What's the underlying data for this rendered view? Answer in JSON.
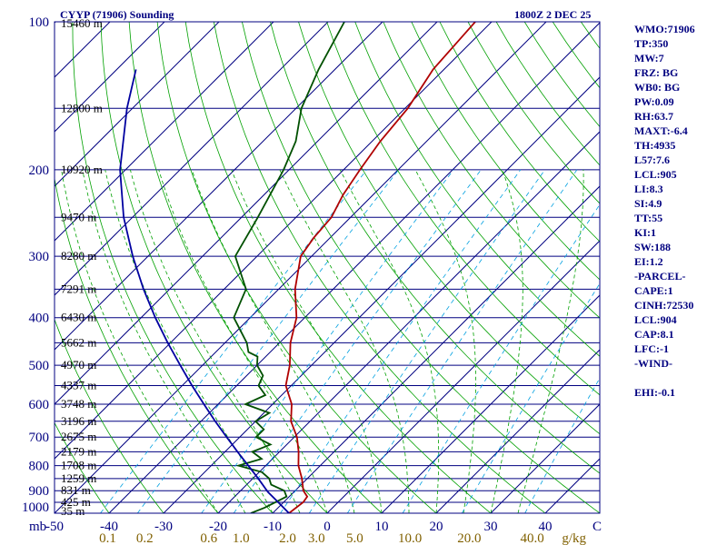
{
  "header": {
    "station_title": "CYYP (71906) Sounding",
    "time": "1800Z  2 DEC 25"
  },
  "stats": [
    "WMO:71906",
    "TP:350",
    "MW:7",
    "FRZ: BG",
    "WB0: BG",
    "PW:0.09",
    "RH:63.7",
    "MAXT:-6.4",
    "TH:4935",
    "L57:7.6",
    "LCL:905",
    "LI:8.3",
    "SI:4.9",
    "TT:55",
    "KI:1",
    "SW:188",
    "EI:1.2",
    "-PARCEL-",
    "CAPE:1",
    "CINH:72530",
    "LCL:904",
    "CAP:8.1",
    "LFC:-1",
    "-WIND-",
    "",
    "EHI:-0.1"
  ],
  "colors": {
    "frame": "#000080",
    "isobar": "#000080",
    "isotherm": "#000080",
    "dry_adiabat": "#00a000",
    "moist_adiabat": "#00a000",
    "mixing_ratio": "#00a0e0",
    "temperature": "#b00000",
    "dewpoint": "#005000",
    "parcel": "#0000a0",
    "axis_label": "#000080",
    "mixing_label": "#806000",
    "height_label": "#000000"
  },
  "chart_data": {
    "type": "line",
    "title": "CYYP (71906) Sounding",
    "xlabel": "C",
    "ylabel": "mb",
    "x_ticks": [
      -50,
      -40,
      -30,
      -20,
      -10,
      0,
      10,
      20,
      30,
      40
    ],
    "x_unit_label": "C",
    "pressure_range": [
      100,
      1000
    ],
    "temperature_range": [
      -50,
      50
    ],
    "pressure_tick_labels": [
      {
        "p": 100,
        "label": "100"
      },
      {
        "p": 200,
        "label": "200"
      },
      {
        "p": 300,
        "label": "300"
      },
      {
        "p": 400,
        "label": "400"
      },
      {
        "p": 500,
        "label": "500"
      },
      {
        "p": 600,
        "label": "600"
      },
      {
        "p": 700,
        "label": "700"
      },
      {
        "p": 800,
        "label": "800"
      },
      {
        "p": 900,
        "label": "900"
      },
      {
        "p": 1000,
        "label": "1000"
      }
    ],
    "isobars": [
      100,
      150,
      200,
      250,
      300,
      350,
      400,
      450,
      500,
      550,
      600,
      650,
      700,
      750,
      800,
      850,
      900,
      950,
      1000
    ],
    "heights": [
      {
        "p": 100,
        "label": "15460 m"
      },
      {
        "p": 150,
        "label": "12800 m"
      },
      {
        "p": 200,
        "label": "10920 m"
      },
      {
        "p": 250,
        "label": "9470 m"
      },
      {
        "p": 300,
        "label": "8280 m"
      },
      {
        "p": 350,
        "label": "7291 m"
      },
      {
        "p": 400,
        "label": "6430 m"
      },
      {
        "p": 450,
        "label": "5662 m"
      },
      {
        "p": 500,
        "label": "4970 m"
      },
      {
        "p": 550,
        "label": "4337 m"
      },
      {
        "p": 600,
        "label": "3748 m"
      },
      {
        "p": 650,
        "label": "3196 m"
      },
      {
        "p": 700,
        "label": "2675 m"
      },
      {
        "p": 750,
        "label": "2179 m"
      },
      {
        "p": 800,
        "label": "1708 m"
      },
      {
        "p": 850,
        "label": "1259 m"
      },
      {
        "p": 900,
        "label": "831 m"
      },
      {
        "p": 950,
        "label": "425 m"
      },
      {
        "p": 1000,
        "label": "35 m"
      }
    ],
    "mixing_ratio_labels": [
      "0.1",
      "0.2",
      "0.6",
      "1.0",
      "2.0",
      "3.0",
      "5.0",
      "10.0",
      "20.0",
      "40.0"
    ],
    "mixing_ratio_values": [
      0.1,
      0.2,
      0.6,
      1.0,
      2.0,
      3.0,
      5.0,
      10.0,
      20.0,
      40.0
    ],
    "mixing_ratio_unit": "g/kg",
    "dry_adiabats_theta_c": [
      -50,
      -40,
      -30,
      -20,
      -10,
      0,
      10,
      20,
      30,
      40,
      50,
      60,
      70,
      80,
      90,
      100,
      110,
      120,
      130,
      140,
      150,
      160,
      170,
      180
    ],
    "moist_adiabats_thetaw_c": [
      -20,
      -15,
      -10,
      -5,
      0,
      5,
      10,
      15,
      20,
      25,
      30,
      35
    ],
    "series": [
      {
        "name": "Temperature",
        "points": [
          [
            1000,
            -7.0
          ],
          [
            950,
            -6.4
          ],
          [
            925,
            -6.7
          ],
          [
            900,
            -8.5
          ],
          [
            850,
            -11.0
          ],
          [
            800,
            -14.0
          ],
          [
            750,
            -16.5
          ],
          [
            700,
            -19.5
          ],
          [
            650,
            -23.5
          ],
          [
            600,
            -26.5
          ],
          [
            550,
            -31.0
          ],
          [
            500,
            -34.0
          ],
          [
            450,
            -38.0
          ],
          [
            400,
            -41.5
          ],
          [
            350,
            -47.0
          ],
          [
            300,
            -52.0
          ],
          [
            275,
            -53.0
          ],
          [
            250,
            -53.5
          ],
          [
            225,
            -55.5
          ],
          [
            200,
            -57.0
          ],
          [
            175,
            -58.5
          ],
          [
            150,
            -59.5
          ],
          [
            125,
            -62.0
          ],
          [
            100,
            -63.0
          ]
        ]
      },
      {
        "name": "Dewpoint",
        "points": [
          [
            1000,
            -14.0
          ],
          [
            975,
            -12.5
          ],
          [
            950,
            -11.5
          ],
          [
            925,
            -10.5
          ],
          [
            900,
            -12.0
          ],
          [
            875,
            -15.5
          ],
          [
            850,
            -17.0
          ],
          [
            825,
            -19.5
          ],
          [
            800,
            -25.0
          ],
          [
            775,
            -22.0
          ],
          [
            750,
            -25.0
          ],
          [
            725,
            -23.0
          ],
          [
            700,
            -27.0
          ],
          [
            675,
            -27.0
          ],
          [
            650,
            -30.0
          ],
          [
            625,
            -29.0
          ],
          [
            600,
            -35.0
          ],
          [
            575,
            -33.0
          ],
          [
            550,
            -36.0
          ],
          [
            525,
            -37.0
          ],
          [
            500,
            -40.0
          ],
          [
            480,
            -41.5
          ],
          [
            470,
            -44.0
          ],
          [
            450,
            -46.0
          ],
          [
            400,
            -53.0
          ],
          [
            350,
            -56.0
          ],
          [
            300,
            -64.0
          ],
          [
            250,
            -67.0
          ],
          [
            200,
            -71.0
          ],
          [
            175,
            -74.0
          ],
          [
            150,
            -79.0
          ],
          [
            125,
            -83.0
          ],
          [
            100,
            -87.0
          ]
        ]
      },
      {
        "name": "Parcel",
        "points": [
          [
            1000,
            -7.0
          ],
          [
            950,
            -11.0
          ],
          [
            905,
            -14.8
          ],
          [
            850,
            -19.0
          ],
          [
            800,
            -23.2
          ],
          [
            750,
            -27.7
          ],
          [
            700,
            -32.4
          ],
          [
            650,
            -37.4
          ],
          [
            600,
            -42.6
          ],
          [
            550,
            -48.2
          ],
          [
            500,
            -54.1
          ],
          [
            450,
            -60.5
          ],
          [
            400,
            -67.4
          ],
          [
            350,
            -74.8
          ],
          [
            300,
            -82.8
          ],
          [
            250,
            -91.6
          ],
          [
            200,
            -101.0
          ],
          [
            150,
            -111.0
          ],
          [
            125,
            -116.5
          ]
        ]
      }
    ]
  }
}
